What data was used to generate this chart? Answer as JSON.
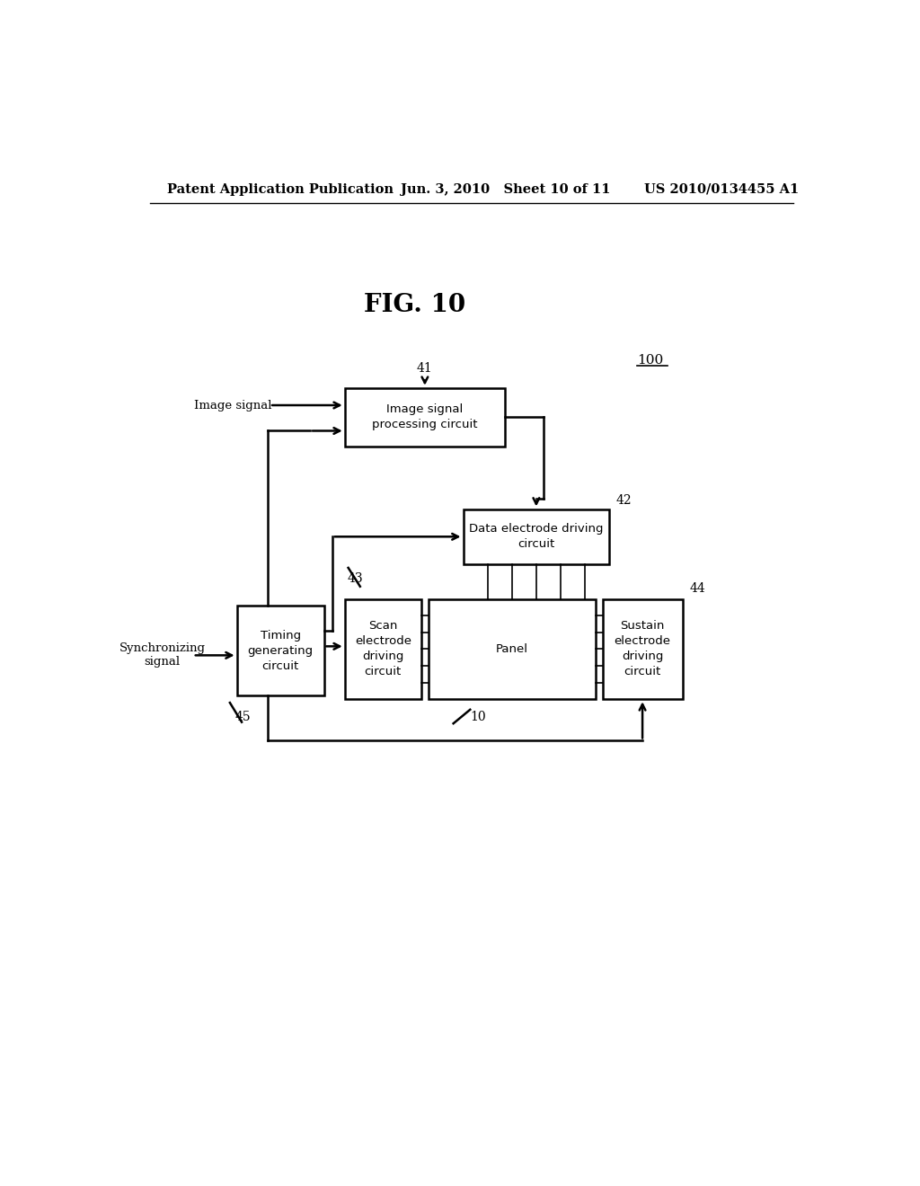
{
  "bg_color": "#ffffff",
  "header_left": "Patent Application Publication",
  "header_mid": "Jun. 3, 2010   Sheet 10 of 11",
  "header_right": "US 2010/0134455 A1",
  "fig_title": "FIG. 10",
  "label_100": "100",
  "label_41": "41",
  "label_42": "42",
  "label_43": "43",
  "label_44": "44",
  "label_45": "45",
  "label_10": "10",
  "box_41_text": "Image signal\nprocessing circuit",
  "box_42_text": "Data electrode driving\ncircuit",
  "box_43_text": "Scan\nelectrode\ndriving\ncircuit",
  "box_44_text": "Sustain\nelectrode\ndriving\ncircuit",
  "box_45_text": "Timing\ngenerating\ncircuit",
  "box_panel_text": "Panel",
  "label_image_signal": "Image signal",
  "label_sync_signal": "Synchronizing\nsignal",
  "line_color": "#000000",
  "text_color": "#000000",
  "font_size_header": 10.5,
  "font_size_title": 20,
  "font_size_label": 9.5,
  "font_size_box": 9.5,
  "font_size_number": 10
}
